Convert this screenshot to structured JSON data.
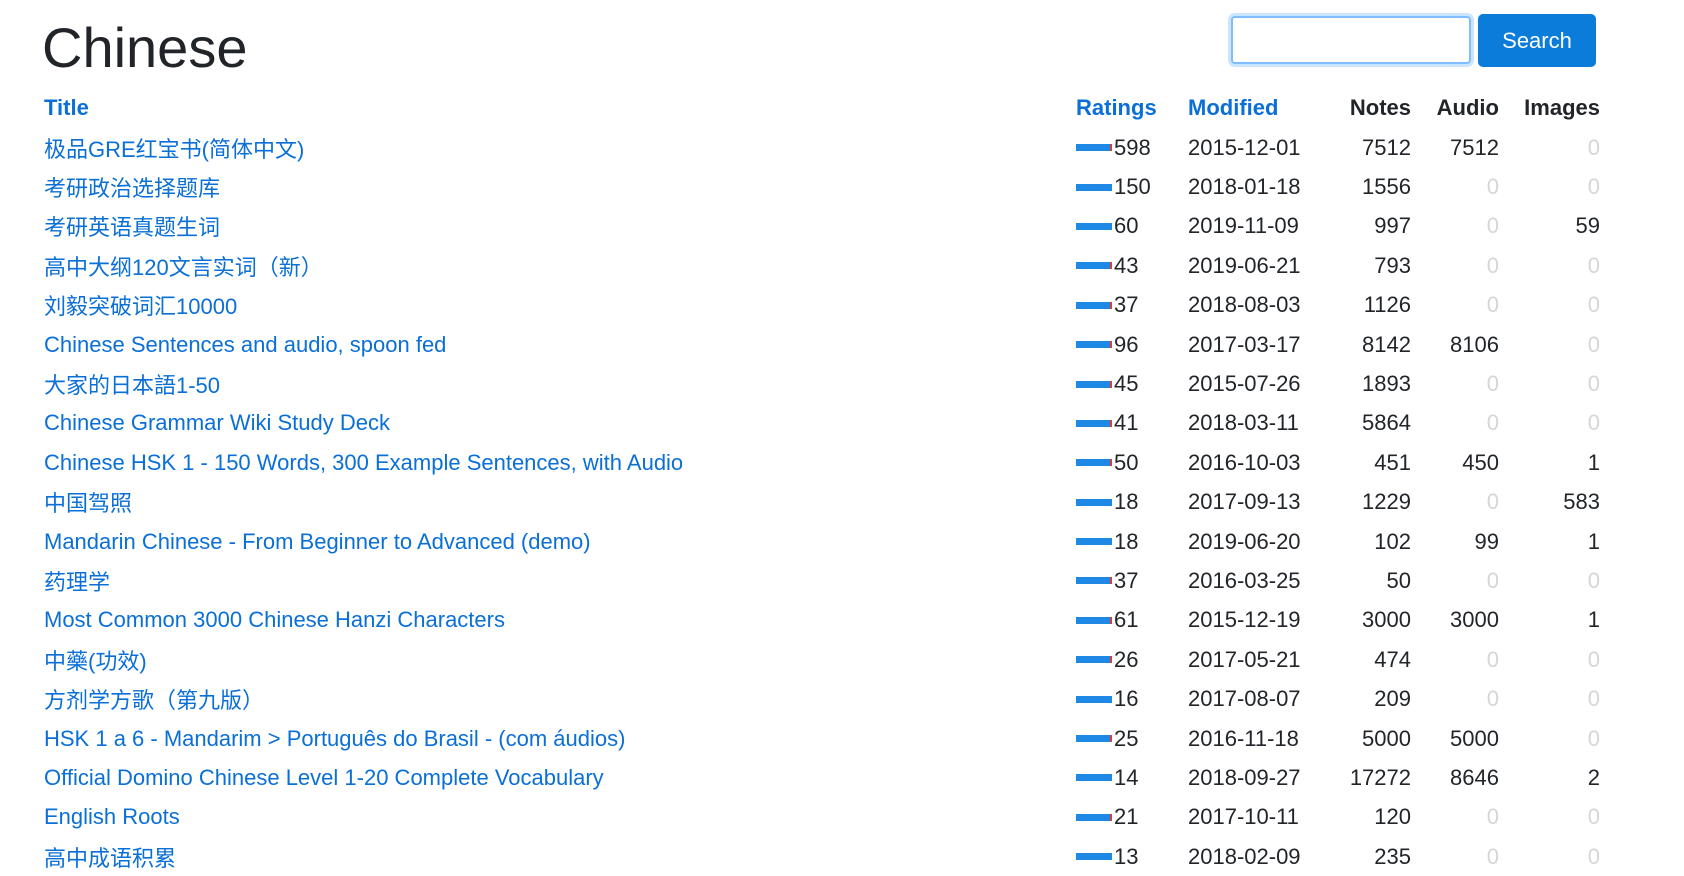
{
  "page": {
    "title": "Chinese"
  },
  "search": {
    "placeholder": "",
    "value": "",
    "button_label": "Search"
  },
  "table": {
    "headers": {
      "title": "Title",
      "ratings": "Ratings",
      "modified": "Modified",
      "notes": "Notes",
      "audio": "Audio",
      "images": "Images"
    },
    "rows": [
      {
        "title": "极品GRE红宝书(简体中文)",
        "ratings": "598",
        "modified": "2015-12-01",
        "notes": "7512",
        "audio": "7512",
        "images": "0",
        "has_negative": true
      },
      {
        "title": "考研政治选择题库",
        "ratings": "150",
        "modified": "2018-01-18",
        "notes": "1556",
        "audio": "0",
        "images": "0",
        "has_negative": false
      },
      {
        "title": "考研英语真题生词",
        "ratings": "60",
        "modified": "2019-11-09",
        "notes": "997",
        "audio": "0",
        "images": "59",
        "has_negative": false
      },
      {
        "title": "高中大纲120文言实词（新）",
        "ratings": "43",
        "modified": "2019-06-21",
        "notes": "793",
        "audio": "0",
        "images": "0",
        "has_negative": true
      },
      {
        "title": "刘毅突破词汇10000",
        "ratings": "37",
        "modified": "2018-08-03",
        "notes": "1126",
        "audio": "0",
        "images": "0",
        "has_negative": true
      },
      {
        "title": "Chinese Sentences and audio, spoon fed",
        "ratings": "96",
        "modified": "2017-03-17",
        "notes": "8142",
        "audio": "8106",
        "images": "0",
        "has_negative": true
      },
      {
        "title": "大家的日本語1-50",
        "ratings": "45",
        "modified": "2015-07-26",
        "notes": "1893",
        "audio": "0",
        "images": "0",
        "has_negative": true
      },
      {
        "title": "Chinese Grammar Wiki Study Deck",
        "ratings": "41",
        "modified": "2018-03-11",
        "notes": "5864",
        "audio": "0",
        "images": "0",
        "has_negative": true
      },
      {
        "title": "Chinese HSK 1 - 150 Words, 300 Example Sentences, with Audio",
        "ratings": "50",
        "modified": "2016-10-03",
        "notes": "451",
        "audio": "450",
        "images": "1",
        "has_negative": true
      },
      {
        "title": "中国驾照",
        "ratings": "18",
        "modified": "2017-09-13",
        "notes": "1229",
        "audio": "0",
        "images": "583",
        "has_negative": false
      },
      {
        "title": "Mandarin Chinese - From Beginner to Advanced (demo)",
        "ratings": "18",
        "modified": "2019-06-20",
        "notes": "102",
        "audio": "99",
        "images": "1",
        "has_negative": false
      },
      {
        "title": "药理学",
        "ratings": "37",
        "modified": "2016-03-25",
        "notes": "50",
        "audio": "0",
        "images": "0",
        "has_negative": true
      },
      {
        "title": "Most Common 3000 Chinese Hanzi Characters",
        "ratings": "61",
        "modified": "2015-12-19",
        "notes": "3000",
        "audio": "3000",
        "images": "1",
        "has_negative": true
      },
      {
        "title": "中藥(功效)",
        "ratings": "26",
        "modified": "2017-05-21",
        "notes": "474",
        "audio": "0",
        "images": "0",
        "has_negative": true
      },
      {
        "title": "方剂学方歌（第九版）",
        "ratings": "16",
        "modified": "2017-08-07",
        "notes": "209",
        "audio": "0",
        "images": "0",
        "has_negative": false
      },
      {
        "title": "HSK 1 a 6 - Mandarim > Português do Brasil - (com áudios)",
        "ratings": "25",
        "modified": "2016-11-18",
        "notes": "5000",
        "audio": "5000",
        "images": "0",
        "has_negative": true
      },
      {
        "title": "Official Domino Chinese Level 1-20 Complete Vocabulary",
        "ratings": "14",
        "modified": "2018-09-27",
        "notes": "17272",
        "audio": "8646",
        "images": "2",
        "has_negative": false
      },
      {
        "title": "English Roots",
        "ratings": "21",
        "modified": "2017-10-11",
        "notes": "120",
        "audio": "0",
        "images": "0",
        "has_negative": true
      },
      {
        "title": "高中成语积累",
        "ratings": "13",
        "modified": "2018-02-09",
        "notes": "235",
        "audio": "0",
        "images": "0",
        "has_negative": false
      }
    ]
  },
  "colors": {
    "link": "#0a6fd6",
    "button": "#0c7cdb",
    "rating_positive": "#1e88e5",
    "rating_negative": "#e53935",
    "zero_value": "#d6d6d6"
  }
}
